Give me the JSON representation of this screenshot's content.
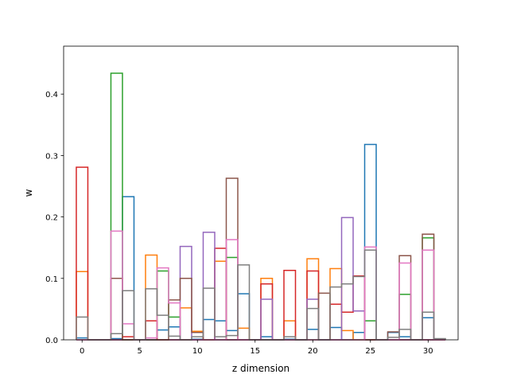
{
  "chart_data": {
    "type": "bar",
    "style": "step-outline",
    "xlabel": "z dimension",
    "ylabel": "w",
    "xlim": [
      -1.6,
      32.6
    ],
    "ylim": [
      0,
      0.478
    ],
    "xticks": [
      0,
      5,
      10,
      15,
      20,
      25,
      30
    ],
    "yticks": [
      0.0,
      0.1,
      0.2,
      0.3,
      0.4
    ],
    "ytick_labels": [
      "0.0",
      "0.1",
      "0.2",
      "0.3",
      "0.4"
    ],
    "grid": false,
    "legend": "none",
    "colors": [
      "#1f77b4",
      "#ff7f0e",
      "#2ca02c",
      "#d62728",
      "#9467bd",
      "#8c564b",
      "#e377c2",
      "#7f7f7f"
    ],
    "x": [
      0,
      1,
      2,
      3,
      4,
      5,
      6,
      7,
      8,
      9,
      10,
      11,
      12,
      13,
      14,
      15,
      16,
      17,
      18,
      19,
      20,
      21,
      22,
      23,
      24,
      25,
      26,
      27,
      28,
      29,
      30,
      31
    ],
    "series": [
      {
        "values": [
          0.003,
          0,
          0,
          0.002,
          0.233,
          0,
          0,
          0.016,
          0.021,
          0,
          0.001,
          0.033,
          0.031,
          0.015,
          0.075,
          0,
          0.005,
          0,
          0.001,
          0,
          0.017,
          0,
          0.02,
          0,
          0.012,
          0.318,
          0,
          0.012,
          0.005,
          0,
          0.036,
          0
        ]
      },
      {
        "values": [
          0.111,
          0,
          0,
          0,
          0,
          0,
          0.138,
          0,
          0,
          0.052,
          0.014,
          0,
          0.128,
          0,
          0.019,
          0,
          0.1,
          0,
          0.031,
          0,
          0.132,
          0,
          0.116,
          0.015,
          0,
          0,
          0,
          0,
          0,
          0,
          0,
          0
        ]
      },
      {
        "values": [
          0,
          0,
          0,
          0.434,
          0,
          0,
          0,
          0.112,
          0.037,
          0,
          0,
          0,
          0,
          0.134,
          0,
          0,
          0,
          0,
          0,
          0,
          0,
          0,
          0,
          0,
          0,
          0.031,
          0,
          0,
          0.074,
          0,
          0.166,
          0
        ]
      },
      {
        "values": [
          0.281,
          0,
          0,
          0,
          0.005,
          0,
          0.031,
          0,
          0,
          0,
          0,
          0,
          0.149,
          0,
          0,
          0,
          0.091,
          0,
          0.113,
          0,
          0.112,
          0,
          0.058,
          0.045,
          0.104,
          0,
          0,
          0,
          0,
          0,
          0,
          0
        ]
      },
      {
        "values": [
          0,
          0,
          0,
          0,
          0,
          0,
          0,
          0,
          0,
          0.152,
          0,
          0.175,
          0,
          0,
          0,
          0,
          0.066,
          0,
          0,
          0,
          0.066,
          0,
          0,
          0.199,
          0.047,
          0,
          0,
          0,
          0,
          0,
          0,
          0
        ]
      },
      {
        "values": [
          0,
          0,
          0,
          0.1,
          0,
          0,
          0,
          0,
          0.065,
          0.1,
          0.012,
          0,
          0,
          0.263,
          0,
          0,
          0,
          0,
          0,
          0,
          0,
          0.076,
          0,
          0,
          0,
          0,
          0,
          0.013,
          0.137,
          0,
          0.172,
          0
        ]
      },
      {
        "values": [
          0,
          0,
          0,
          0.177,
          0.026,
          0,
          0.003,
          0.117,
          0.06,
          0,
          0,
          0,
          0,
          0.163,
          0,
          0,
          0,
          0,
          0,
          0,
          0,
          0,
          0,
          0,
          0,
          0.151,
          0,
          0,
          0.125,
          0,
          0.146,
          0
        ]
      },
      {
        "values": [
          0.037,
          0,
          0,
          0.01,
          0.08,
          0,
          0.083,
          0.04,
          0.006,
          0,
          0.005,
          0.084,
          0.005,
          0.007,
          0.122,
          0,
          0,
          0,
          0.005,
          0,
          0.051,
          0,
          0.086,
          0.091,
          0.103,
          0.146,
          0,
          0.004,
          0.017,
          0,
          0.045,
          0.002
        ]
      }
    ]
  }
}
